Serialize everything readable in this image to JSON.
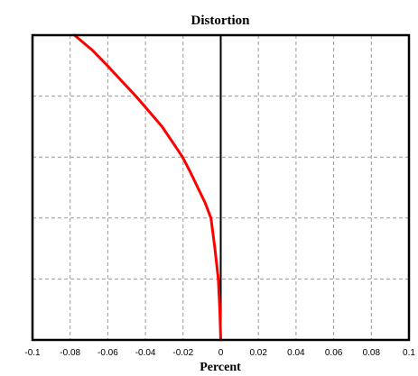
{
  "chart_data": {
    "type": "line",
    "title": "Distortion",
    "xlabel": "Percent",
    "ylabel": "",
    "xlim": [
      -0.1,
      0.1
    ],
    "ylim": [
      0,
      1
    ],
    "x_ticks": [
      -0.1,
      -0.08,
      -0.06,
      -0.04,
      -0.02,
      0,
      0.02,
      0.04,
      0.06,
      0.08,
      0.1
    ],
    "x_tick_labels": [
      "-0.1",
      "-0.08",
      "-0.06",
      "-0.04",
      "-0.02",
      "0",
      "0.02",
      "0.04",
      "0.06",
      "0.08",
      "0.1"
    ],
    "y_gridlines": [
      0.2,
      0.4,
      0.6,
      0.8
    ],
    "grid": true,
    "zero_line": true,
    "series": [
      {
        "color": "#ff0000",
        "x": [
          0,
          -0.0005,
          -0.0013,
          -0.0031,
          -0.0052,
          -0.0083,
          -0.0122,
          -0.0161,
          -0.0203,
          -0.0257,
          -0.0312,
          -0.0381,
          -0.0451,
          -0.0527,
          -0.0602,
          -0.0681,
          -0.0777
        ],
        "y": [
          0,
          0.1,
          0.2,
          0.3,
          0.4,
          0.45,
          0.5,
          0.55,
          0.6,
          0.65,
          0.7,
          0.75,
          0.8,
          0.85,
          0.9,
          0.95,
          1.0
        ]
      }
    ]
  }
}
